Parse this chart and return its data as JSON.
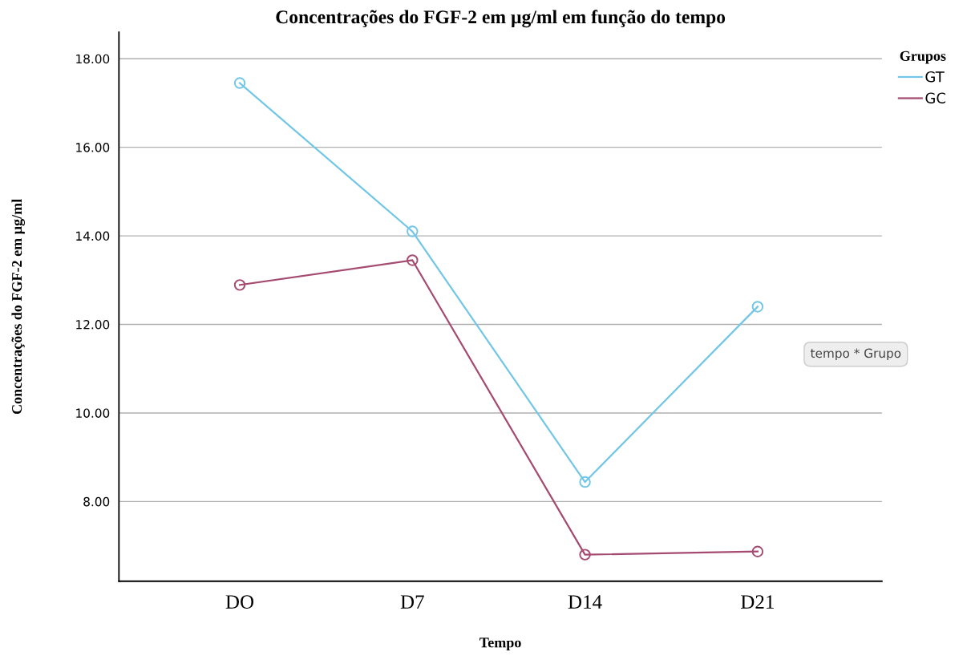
{
  "chart_data": {
    "type": "line",
    "title": "Concentrações do FGF-2 em µg/ml em função do tempo",
    "xlabel": "Tempo",
    "ylabel": "Concentrações do FGF-2 em µg/ml",
    "legend_title": "Grupos",
    "categories": [
      "DO",
      "D7",
      "D14",
      "D21"
    ],
    "series": [
      {
        "name": "GT",
        "color": "#72c6e6",
        "values": [
          17.45,
          14.1,
          8.44,
          12.4
        ]
      },
      {
        "name": "GC",
        "color": "#a54a70",
        "values": [
          12.89,
          13.45,
          6.8,
          6.87
        ]
      }
    ],
    "ylim": [
      6.2,
      18.6
    ],
    "yticks": [
      {
        "value": 8,
        "label": "8.00"
      },
      {
        "value": 10,
        "label": "10.00"
      },
      {
        "value": 12,
        "label": "12.00"
      },
      {
        "value": 14,
        "label": "14.00"
      },
      {
        "value": 16,
        "label": "16.00"
      },
      {
        "value": 18,
        "label": "18.00"
      }
    ],
    "grid": "y",
    "legend": "top right",
    "marker": "circle",
    "line_style": "solid",
    "annotations": [
      "tempo * Grupo"
    ]
  }
}
